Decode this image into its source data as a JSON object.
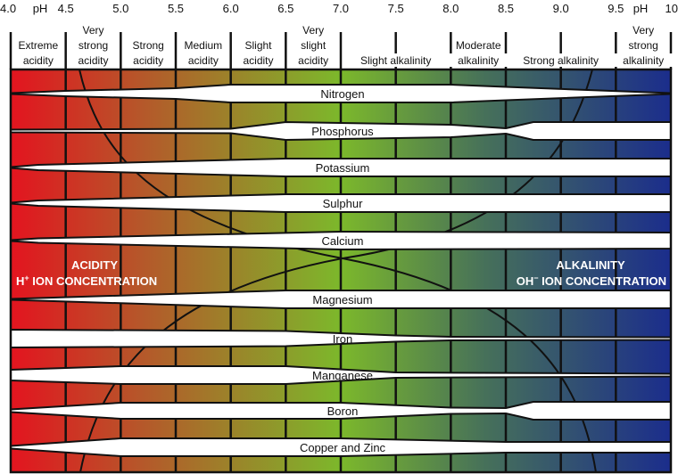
{
  "ph_axis": {
    "unit_label": "pH",
    "ticks": [
      "4.0",
      "4.5",
      "5.0",
      "5.5",
      "6.0",
      "6.5",
      "7.0",
      "7.5",
      "8.0",
      "8.5",
      "9.0",
      "9.5",
      "10"
    ]
  },
  "categories": [
    {
      "lines": [
        "Extreme",
        "acidity"
      ],
      "from": 4.0,
      "to": 4.5
    },
    {
      "lines": [
        "Very",
        "strong",
        "acidity"
      ],
      "from": 4.5,
      "to": 5.0
    },
    {
      "lines": [
        "Strong",
        "acidity"
      ],
      "from": 5.0,
      "to": 5.5
    },
    {
      "lines": [
        "Medium",
        "acidity"
      ],
      "from": 5.5,
      "to": 6.0
    },
    {
      "lines": [
        "Slight",
        "acidity"
      ],
      "from": 6.0,
      "to": 6.5
    },
    {
      "lines": [
        "Very",
        "slight",
        "acidity"
      ],
      "from": 6.5,
      "to": 7.0
    },
    {
      "lines": [
        "Slight alkalinity"
      ],
      "from": 7.0,
      "to": 8.0
    },
    {
      "lines": [
        "Moderate",
        "alkalinity"
      ],
      "from": 8.0,
      "to": 8.5
    },
    {
      "lines": [
        "Strong alkalinity"
      ],
      "from": 8.5,
      "to": 9.5
    },
    {
      "lines": [
        "Very",
        "strong",
        "alkalinity"
      ],
      "from": 9.5,
      "to": 10.0
    }
  ],
  "nutrients": [
    {
      "name": "Nitrogen",
      "availability": [
        [
          4.0,
          0.05
        ],
        [
          4.5,
          0.3
        ],
        [
          5.5,
          0.6
        ],
        [
          6.0,
          1
        ],
        [
          8.0,
          1
        ],
        [
          8.5,
          0.75
        ],
        [
          10.0,
          0.05
        ]
      ]
    },
    {
      "name": "Phosphorus",
      "availability": [
        [
          4.0,
          0.15
        ],
        [
          6.0,
          0.25
        ],
        [
          6.5,
          1
        ],
        [
          8.0,
          0.7
        ],
        [
          8.5,
          0.3
        ],
        [
          8.75,
          1
        ],
        [
          10.0,
          1
        ]
      ]
    },
    {
      "name": "Potassium",
      "availability": [
        [
          4.0,
          0.05
        ],
        [
          4.25,
          0.3
        ],
        [
          6.0,
          0.85
        ],
        [
          6.5,
          1
        ],
        [
          10.0,
          1
        ]
      ]
    },
    {
      "name": "Sulphur",
      "availability": [
        [
          4.0,
          0.05
        ],
        [
          4.25,
          0.3
        ],
        [
          6.0,
          0.85
        ],
        [
          6.5,
          1
        ],
        [
          10.0,
          1
        ]
      ]
    },
    {
      "name": "Calcium",
      "availability": [
        [
          4.0,
          0.05
        ],
        [
          4.25,
          0.25
        ],
        [
          7.0,
          1
        ],
        [
          10.0,
          0.9
        ]
      ]
    },
    {
      "name": "Magnesium",
      "availability": [
        [
          4.0,
          0.05
        ],
        [
          6.5,
          1
        ],
        [
          10.0,
          1
        ]
      ]
    },
    {
      "name": "Iron",
      "availability": [
        [
          4.0,
          1
        ],
        [
          6.5,
          0.85
        ],
        [
          7.5,
          0.35
        ],
        [
          8.0,
          0.2
        ],
        [
          10.0,
          0.15
        ]
      ]
    },
    {
      "name": "Manganese",
      "availability": [
        [
          4.0,
          0.6
        ],
        [
          5.0,
          1
        ],
        [
          6.5,
          1
        ],
        [
          7.5,
          0.3
        ],
        [
          10.0,
          0.15
        ]
      ]
    },
    {
      "name": "Boron",
      "availability": [
        [
          4.0,
          0.15
        ],
        [
          5.0,
          0.9
        ],
        [
          7.0,
          0.9
        ],
        [
          8.0,
          0.35
        ],
        [
          8.5,
          0.3
        ],
        [
          8.75,
          1
        ],
        [
          10.0,
          1
        ]
      ]
    },
    {
      "name": "Copper and Zinc",
      "availability": [
        [
          4.0,
          0.15
        ],
        [
          5.0,
          1
        ],
        [
          7.0,
          1
        ],
        [
          8.5,
          0.6
        ],
        [
          10.0,
          0.6
        ]
      ]
    }
  ],
  "acidity_label": {
    "title": "ACIDITY",
    "ion": "H",
    "sup": "+",
    "rest": " ION CONCENTRATION"
  },
  "alkalinity_label": {
    "title": "ALKALINITY",
    "ion": "OH",
    "sup": "−",
    "rest": " ION CONCENTRATION"
  },
  "colors": {
    "acid": "#e3141f",
    "mid_acid": "#b5582a",
    "neutral": "#7cb82b",
    "mid_alkaline": "#46705a",
    "alkaline": "#1b2d8c",
    "band": "#ffffff",
    "line": "#111111"
  }
}
